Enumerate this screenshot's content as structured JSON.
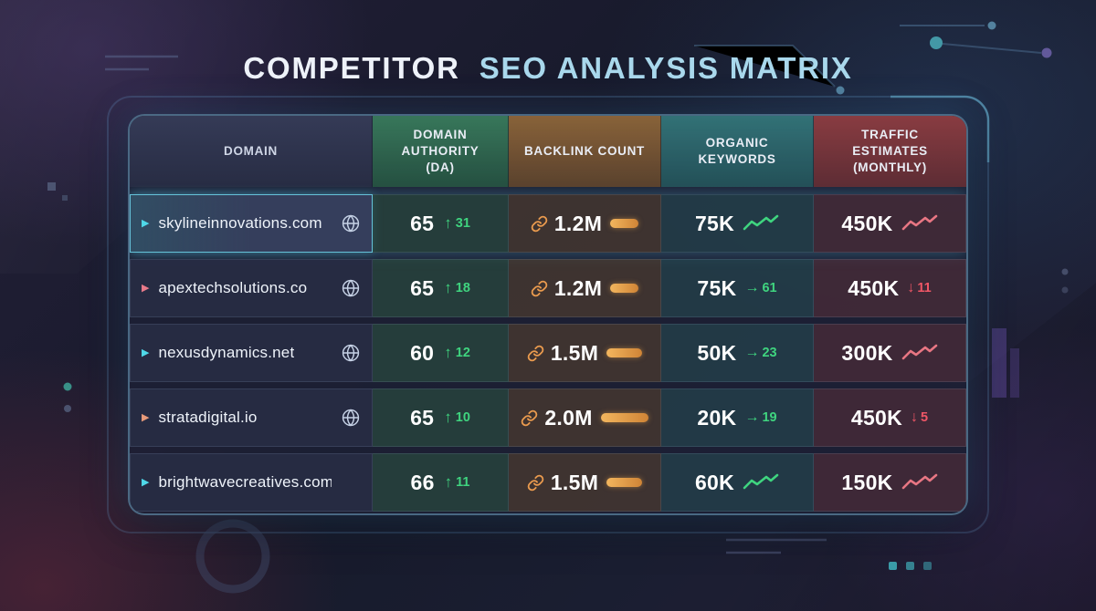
{
  "title": {
    "prefix": "COMPETITOR",
    "highlight": "SEO ANALYSIS MATRIX"
  },
  "colors": {
    "green": "#3fd47f",
    "orange": "#e99a4e",
    "red": "#ef5666",
    "pink_trend": "#e87683",
    "cyan": "#4fd8e8",
    "title_highlight": "#a9d8ec"
  },
  "chart_data": {
    "type": "table",
    "title": "COMPETITOR SEO ANALYSIS MATRIX",
    "columns": [
      {
        "label": "DOMAIN"
      },
      {
        "label": "DOMAIN AUTHORITY (DA)"
      },
      {
        "label": "BACKLINK COUNT"
      },
      {
        "label": "ORGANIC KEYWORDS"
      },
      {
        "label": "TRAFFIC ESTIMATES (MONTHLY)"
      }
    ],
    "rows": [
      {
        "domain": "skylineinnovations.com",
        "marker_color": "#4fd8e8",
        "has_globe": true,
        "selected": true,
        "domain_authority": "65",
        "da_change": "31",
        "da_change_dir": "up",
        "backlinks": "1.2M",
        "keywords": "75K",
        "keywords_indicator": {
          "type": "trend",
          "color": "#3fd47f"
        },
        "traffic": "450K",
        "traffic_indicator": {
          "type": "trend",
          "color": "#e87683"
        }
      },
      {
        "domain": "apextechsolutions.co",
        "marker_color": "#e87a8a",
        "has_globe": true,
        "selected": false,
        "domain_authority": "65",
        "da_change": "18",
        "da_change_dir": "up",
        "backlinks": "1.2M",
        "keywords": "75K",
        "keywords_indicator": {
          "type": "delta",
          "dir": "right",
          "value": "61",
          "color": "#3fd47f"
        },
        "traffic": "450K",
        "traffic_indicator": {
          "type": "delta",
          "dir": "down",
          "value": "11",
          "color": "#ef5666"
        }
      },
      {
        "domain": "nexusdynamics.net",
        "marker_color": "#4fd8e8",
        "has_globe": true,
        "selected": false,
        "domain_authority": "60",
        "da_change": "12",
        "da_change_dir": "up",
        "backlinks": "1.5M",
        "keywords": "50K",
        "keywords_indicator": {
          "type": "delta",
          "dir": "right",
          "value": "23",
          "color": "#3fd47f"
        },
        "traffic": "300K",
        "traffic_indicator": {
          "type": "trend",
          "color": "#e87683"
        }
      },
      {
        "domain": "stratadigital.io",
        "marker_color": "#e89a7a",
        "has_globe": true,
        "selected": false,
        "domain_authority": "65",
        "da_change": "10",
        "da_change_dir": "up",
        "backlinks": "2.0M",
        "keywords": "20K",
        "keywords_indicator": {
          "type": "delta",
          "dir": "right",
          "value": "19",
          "color": "#3fd47f"
        },
        "traffic": "450K",
        "traffic_indicator": {
          "type": "delta",
          "dir": "down",
          "value": "5",
          "color": "#ef5666"
        }
      },
      {
        "domain": "brightwavecreatives.com",
        "marker_color": "#4fd8e8",
        "has_globe": false,
        "selected": false,
        "domain_authority": "66",
        "da_change": "11",
        "da_change_dir": "up",
        "backlinks": "1.5M",
        "keywords": "60K",
        "keywords_indicator": {
          "type": "trend",
          "color": "#3fd47f"
        },
        "traffic": "150K",
        "traffic_indicator": {
          "type": "trend",
          "color": "#e87683"
        }
      }
    ]
  }
}
